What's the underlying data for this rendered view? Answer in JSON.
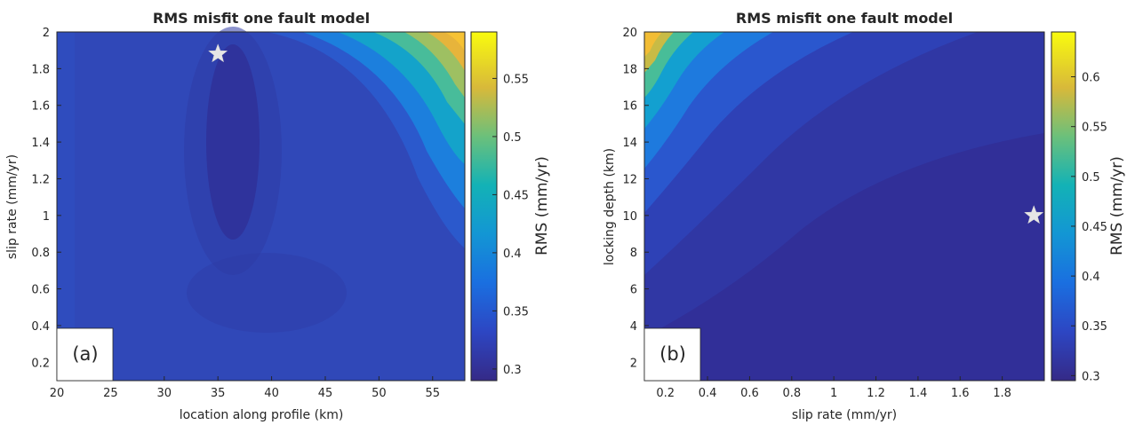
{
  "chart_data": [
    {
      "id": "a",
      "type": "heatmap",
      "title": "RMS misfit one fault model",
      "panel_label": "(a)",
      "xlabel": "location along profile (km)",
      "ylabel": "slip rate (mm/yr)",
      "xlim": [
        20,
        58
      ],
      "ylim": [
        0.1,
        2.0
      ],
      "xticks": [
        20,
        25,
        30,
        35,
        40,
        45,
        50,
        55
      ],
      "yticks": [
        0.2,
        0.4,
        0.6,
        0.8,
        1,
        1.2,
        1.4,
        1.6,
        1.8,
        2
      ],
      "colorbar": {
        "label": "RMS (mm/yr)",
        "range": [
          0.29,
          0.59
        ],
        "ticks": [
          0.3,
          0.35,
          0.4,
          0.45,
          0.5,
          0.55
        ],
        "colormap": "parula"
      },
      "best_fit_marker": {
        "symbol": "star",
        "x": 35,
        "y": 1.88,
        "color": "#e6e6e6"
      },
      "grid": false
    },
    {
      "id": "b",
      "type": "heatmap",
      "title": "RMS misfit one fault model",
      "panel_label": "(b)",
      "xlabel": "slip rate (mm/yr)",
      "ylabel": "locking depth (km)",
      "xlim": [
        0.1,
        2.0
      ],
      "ylim": [
        1,
        20
      ],
      "xticks": [
        0.2,
        0.4,
        0.6,
        0.8,
        1,
        1.2,
        1.4,
        1.6,
        1.8
      ],
      "yticks": [
        2,
        4,
        6,
        8,
        10,
        12,
        14,
        16,
        18,
        20
      ],
      "colorbar": {
        "label": "RMS (mm/yr)",
        "range": [
          0.295,
          0.645
        ],
        "ticks": [
          0.3,
          0.35,
          0.4,
          0.45,
          0.5,
          0.55,
          0.6
        ],
        "colormap": "parula"
      },
      "best_fit_marker": {
        "symbol": "star",
        "x": 1.95,
        "y": 10,
        "color": "#e6e6e6"
      },
      "grid": false
    }
  ]
}
